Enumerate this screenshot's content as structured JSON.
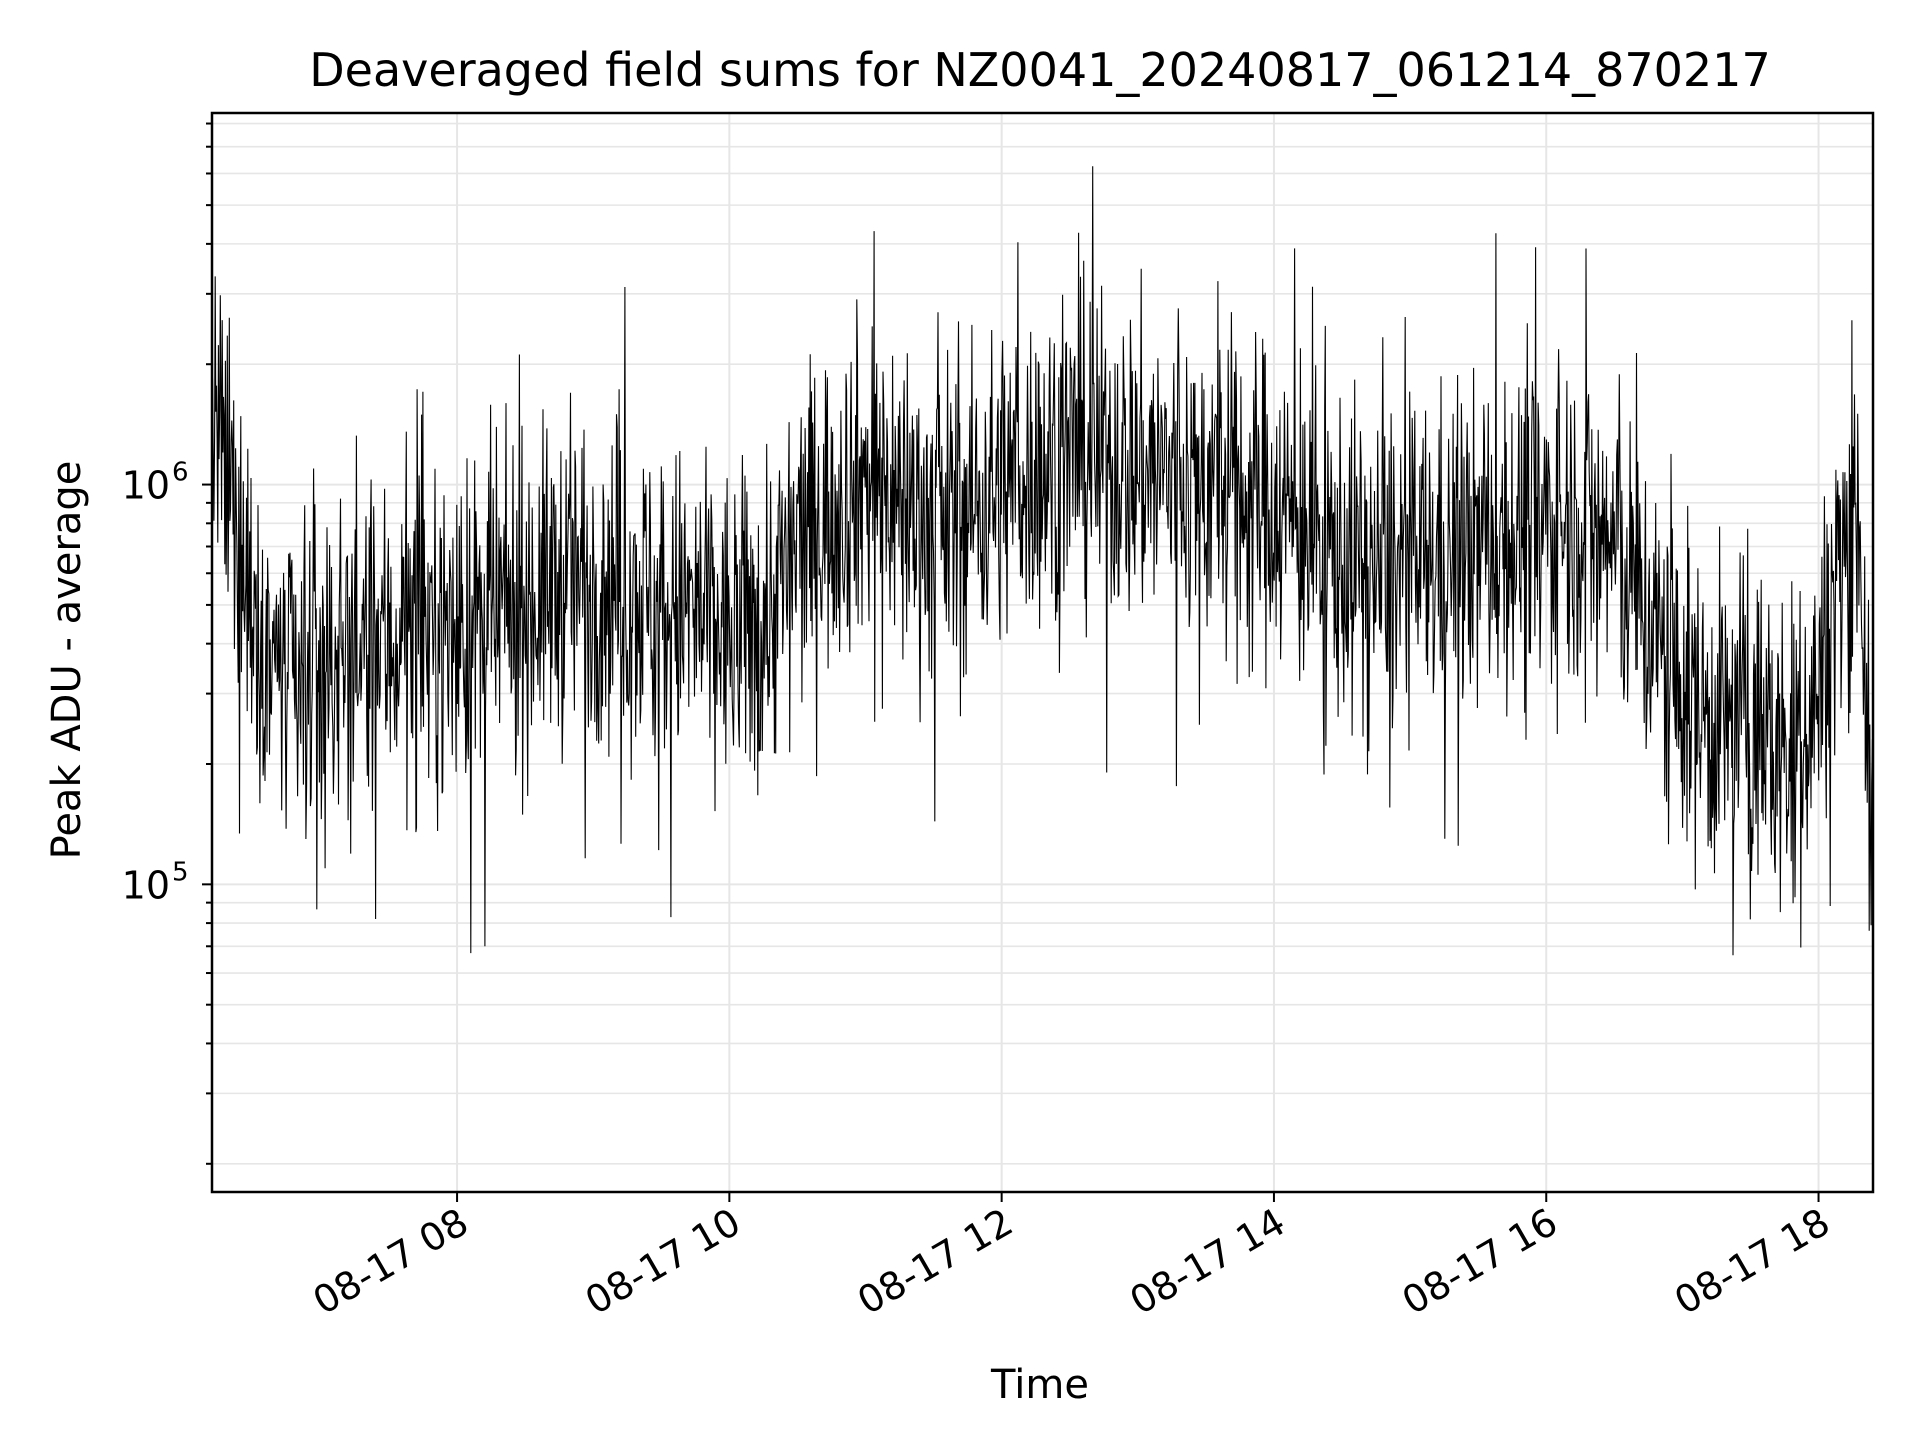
{
  "chart_data": {
    "type": "line",
    "title": "Deaveraged field sums for NZ0041_20240817_061214_870217",
    "xlabel": "Time",
    "ylabel": "Peak ADU - average",
    "xlim": [
      "2024-08-17 06:12",
      "2024-08-17 18:24"
    ],
    "ylim": [
      17000,
      8500000
    ],
    "yscale": "log",
    "grid": true,
    "line_color": "#000000",
    "x_ticks": [
      {
        "value": "2024-08-17 08:00",
        "label": "08-17 08"
      },
      {
        "value": "2024-08-17 10:00",
        "label": "08-17 10"
      },
      {
        "value": "2024-08-17 12:00",
        "label": "08-17 12"
      },
      {
        "value": "2024-08-17 14:00",
        "label": "08-17 14"
      },
      {
        "value": "2024-08-17 16:00",
        "label": "08-17 16"
      },
      {
        "value": "2024-08-17 18:00",
        "label": "08-17 18"
      }
    ],
    "y_ticks": [
      {
        "value": 100000,
        "base": "10",
        "exp": "5"
      },
      {
        "value": 1000000,
        "base": "10",
        "exp": "6"
      }
    ],
    "series": [
      {
        "x": [
          "2024-08-17 06:12",
          "2024-08-17 06:30",
          "2024-08-17 06:45",
          "2024-08-17 07:00",
          "2024-08-17 07:15",
          "2024-08-17 07:30",
          "2024-08-17 07:45",
          "2024-08-17 08:00",
          "2024-08-17 08:15",
          "2024-08-17 08:30",
          "2024-08-17 08:45",
          "2024-08-17 09:00",
          "2024-08-17 09:15",
          "2024-08-17 09:30",
          "2024-08-17 09:45",
          "2024-08-17 10:00",
          "2024-08-17 10:15",
          "2024-08-17 10:30",
          "2024-08-17 10:45",
          "2024-08-17 11:00",
          "2024-08-17 11:15",
          "2024-08-17 11:30",
          "2024-08-17 11:45",
          "2024-08-17 12:00",
          "2024-08-17 12:15",
          "2024-08-17 12:30",
          "2024-08-17 12:45",
          "2024-08-17 13:00",
          "2024-08-17 13:15",
          "2024-08-17 13:30",
          "2024-08-17 13:45",
          "2024-08-17 14:00",
          "2024-08-17 14:15",
          "2024-08-17 14:30",
          "2024-08-17 14:45",
          "2024-08-17 15:00",
          "2024-08-17 15:15",
          "2024-08-17 15:30",
          "2024-08-17 15:45",
          "2024-08-17 16:00",
          "2024-08-17 16:15",
          "2024-08-17 16:30",
          "2024-08-17 16:45",
          "2024-08-17 17:00",
          "2024-08-17 17:15",
          "2024-08-17 17:30",
          "2024-08-17 17:45",
          "2024-08-17 18:00",
          "2024-08-17 18:10",
          "2024-08-17 18:18",
          "2024-08-17 18:24"
        ],
        "y": [
          1500000,
          500000,
          300000,
          350000,
          380000,
          400000,
          450000,
          420000,
          450000,
          500000,
          560000,
          600000,
          550000,
          500000,
          470000,
          420000,
          450000,
          700000,
          900000,
          1050000,
          950000,
          800000,
          850000,
          1000000,
          1100000,
          1200000,
          1150000,
          1100000,
          1050000,
          1000000,
          950000,
          900000,
          750000,
          650000,
          600000,
          620000,
          660000,
          700000,
          750000,
          800000,
          850000,
          700000,
          450000,
          300000,
          250000,
          260000,
          200000,
          300000,
          700000,
          900000,
          80000
        ]
      }
    ]
  }
}
